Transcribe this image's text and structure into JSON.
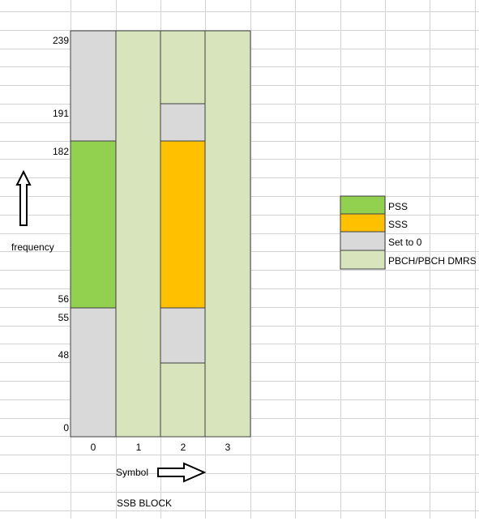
{
  "diagram": {
    "title": "SSB BLOCK",
    "x_axis_label": "Symbol",
    "y_axis_label": "frequency",
    "symbols": [
      "0",
      "1",
      "2",
      "3"
    ],
    "frequency_ticks": [
      "239",
      "191",
      "182",
      "56",
      "55",
      "48",
      "0"
    ],
    "legend": [
      {
        "label": "PSS",
        "color": "#92d050"
      },
      {
        "label": "SSS",
        "color": "#ffc000"
      },
      {
        "label": "Set to 0",
        "color": "#d9d9d9"
      },
      {
        "label": "PBCH/PBCH DMRS",
        "color": "#d8e4bc"
      }
    ]
  }
}
